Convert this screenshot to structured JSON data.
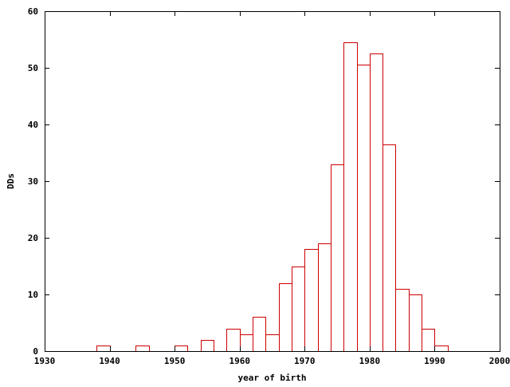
{
  "chart_data": {
    "type": "bar",
    "title": "",
    "xlabel": "year of birth",
    "ylabel": "DDs",
    "xlim": [
      1930,
      2000
    ],
    "ylim": [
      0,
      60
    ],
    "x_ticks": [
      1930,
      1940,
      1950,
      1960,
      1970,
      1980,
      1990,
      2000
    ],
    "y_ticks": [
      0,
      10,
      20,
      30,
      40,
      50,
      60
    ],
    "bin_width": 2,
    "grid": false,
    "legend": "none",
    "bar_color": "#cc0000",
    "bins": [
      {
        "x": 1938,
        "value": 1
      },
      {
        "x": 1944,
        "value": 1
      },
      {
        "x": 1950,
        "value": 1
      },
      {
        "x": 1954,
        "value": 2
      },
      {
        "x": 1958,
        "value": 4
      },
      {
        "x": 1960,
        "value": 3
      },
      {
        "x": 1962,
        "value": 6
      },
      {
        "x": 1964,
        "value": 3
      },
      {
        "x": 1966,
        "value": 12
      },
      {
        "x": 1968,
        "value": 15
      },
      {
        "x": 1970,
        "value": 18
      },
      {
        "x": 1972,
        "value": 19
      },
      {
        "x": 1974,
        "value": 33
      },
      {
        "x": 1976,
        "value": 54.5
      },
      {
        "x": 1978,
        "value": 50.5
      },
      {
        "x": 1980,
        "value": 52.5
      },
      {
        "x": 1982,
        "value": 36.5
      },
      {
        "x": 1984,
        "value": 11
      },
      {
        "x": 1986,
        "value": 10
      },
      {
        "x": 1988,
        "value": 4
      },
      {
        "x": 1990,
        "value": 1
      }
    ]
  }
}
